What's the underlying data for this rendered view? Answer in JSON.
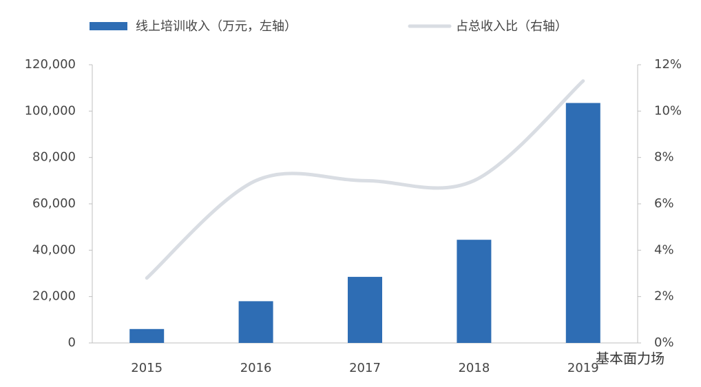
{
  "chart_data": {
    "type": "bar-line",
    "categories": [
      "2015",
      "2016",
      "2017",
      "2018",
      "2019"
    ],
    "series": [
      {
        "name": "线上培训收入（万元，左轴）",
        "type": "bar",
        "color": "#2e6db4",
        "values": [
          6000,
          18000,
          28500,
          44500,
          103500
        ]
      },
      {
        "name": "占总收入比（右轴）",
        "type": "line",
        "axis": "y2",
        "color": "#d9dde3",
        "values": [
          2.8,
          7.0,
          7.0,
          7.0,
          11.3
        ]
      }
    ],
    "ylim": [
      0,
      120000
    ],
    "yticks": [
      0,
      {
        "value": 20000,
        "label": "20,000"
      },
      {
        "value": 40000,
        "label": "40,000"
      },
      {
        "value": 60000,
        "label": "60,000"
      },
      {
        "value": 80000,
        "label": "80,000"
      },
      {
        "value": 100000,
        "label": "100,000"
      },
      {
        "value": 120000,
        "label": "120,000"
      }
    ],
    "y2lim": [
      0,
      12
    ],
    "y2ticks": [
      {
        "value": 0,
        "label": "0%"
      },
      {
        "value": 2,
        "label": "2%"
      },
      {
        "value": 4,
        "label": "4%"
      },
      {
        "value": 6,
        "label": "6%"
      },
      {
        "value": 8,
        "label": "8%"
      },
      {
        "value": 10,
        "label": "10%"
      },
      {
        "value": 12,
        "label": "12%"
      }
    ],
    "grid": false,
    "legend": "top",
    "watermark": "基本面力场"
  }
}
